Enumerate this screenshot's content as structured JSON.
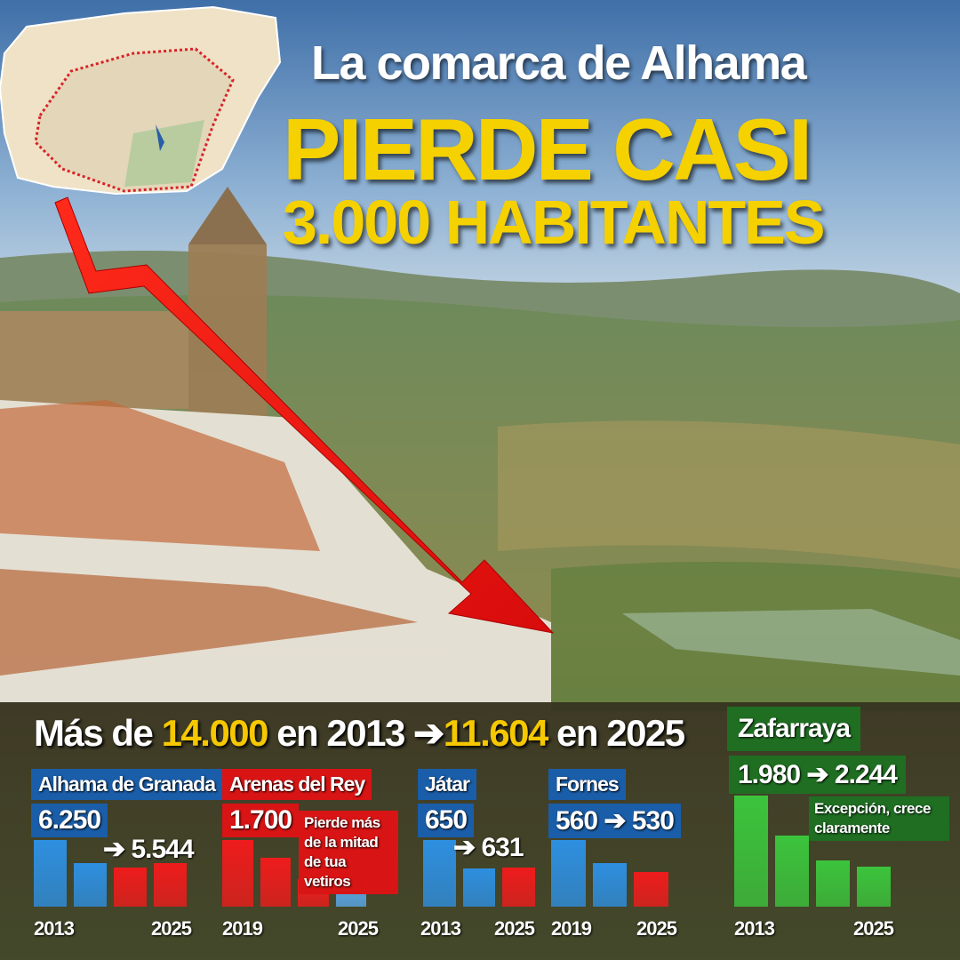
{
  "header": {
    "line1": "La comarca de Alhama",
    "line2": "PIERDE CASI",
    "line3": "3.000 HABITANTES"
  },
  "headline": {
    "p1": "Más de ",
    "v1": "14.000",
    "p2": " en 2013 ",
    "arrow": "➔",
    "v2": "11.604",
    "p3": " en 2025"
  },
  "colors": {
    "blue": "#2e8fe0",
    "red": "#ee1c1c",
    "green": "#3cc43c",
    "light_blue": "#5aa8e8",
    "yellow": "#f5d100"
  },
  "chart_data": [
    {
      "type": "bar",
      "title": "Alhama de Granada",
      "value_from": "6.250",
      "value_to": "➔ 5.544",
      "x_start": "2013",
      "x_end": "2025",
      "bar_levels": [
        1,
        0.66,
        0.59,
        0.66
      ],
      "bar_colors": [
        "blue",
        "blue",
        "red",
        "red"
      ]
    },
    {
      "type": "bar",
      "title": "Arenas del Rey",
      "value_from": "1.700",
      "note": "Pierde más de la mitad de tua vetiros",
      "x_start": "2019",
      "x_end": "2025",
      "bar_levels": [
        1,
        0.73,
        0.41,
        0.41
      ],
      "bar_colors": [
        "red",
        "red",
        "red",
        "light_blue"
      ]
    },
    {
      "type": "bar",
      "title": "Játar",
      "value_from": "650",
      "value_to": "➔ 631",
      "x_start": "2013",
      "x_end": "2025",
      "bar_levels": [
        1,
        0.58,
        0.59
      ],
      "bar_colors": [
        "blue",
        "blue",
        "red"
      ]
    },
    {
      "type": "bar",
      "title": "Fornes",
      "value_from": "560 ➔ 530",
      "x_start": "2019",
      "x_end": "2025",
      "bar_levels": [
        1,
        0.66,
        0.52
      ],
      "bar_colors": [
        "blue",
        "blue",
        "red"
      ]
    },
    {
      "type": "bar",
      "title": "Zafarraya",
      "value_from": "1.980 ➔ 2.244",
      "note": "Excepción, crece claramente",
      "x_start": "2013",
      "x_end": "2025",
      "bar_levels": [
        1,
        0.64,
        0.42,
        0.36
      ],
      "bar_colors": [
        "green",
        "green",
        "green",
        "green"
      ]
    }
  ]
}
